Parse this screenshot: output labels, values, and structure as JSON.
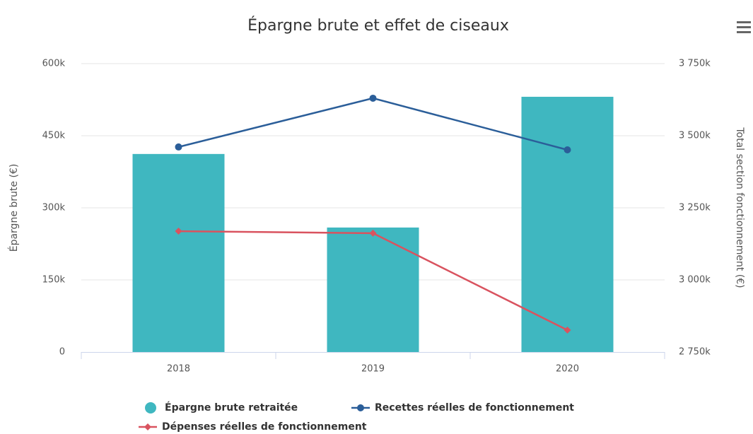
{
  "chart_data": {
    "type": "bar",
    "title": "Épargne brute et effet de ciseaux",
    "categories": [
      "2018",
      "2019",
      "2020"
    ],
    "series": [
      {
        "name": "Épargne brute retraitée",
        "type": "bar",
        "color": "#3fb7c0",
        "values": [
          412000,
          259000,
          531000
        ]
      },
      {
        "name": "Recettes réelles de fonctionnement",
        "type": "line",
        "marker": "circle",
        "axis": "y2",
        "color": "#2b5e99",
        "values": [
          3461000,
          3630000,
          3451000
        ]
      },
      {
        "name": "Dépenses réelles de fonctionnement",
        "type": "line",
        "marker": "diamond",
        "axis": "y2",
        "color": "#d9535f",
        "values": [
          3169000,
          3162000,
          2826000
        ]
      }
    ],
    "ylabel": "Épargne brute (€)",
    "y2label": "Total section fonctionnement (€)",
    "ylim": [
      0,
      600000
    ],
    "yticks": [
      0,
      {
        "value": 150000,
        "label": "150k"
      },
      {
        "value": 300000,
        "label": "300k"
      },
      {
        "value": 450000,
        "label": "450k"
      },
      {
        "value": 600000,
        "label": "600k"
      }
    ],
    "y2lim": [
      2750000,
      3750000
    ],
    "y2ticks": [
      {
        "value": 2750000,
        "label": "2 750k"
      },
      {
        "value": 3000000,
        "label": "3 000k"
      },
      {
        "value": 3250000,
        "label": "3 250k"
      },
      {
        "value": 3500000,
        "label": "3 500k"
      },
      {
        "value": 3750000,
        "label": "3 750k"
      }
    ],
    "grid": true
  }
}
